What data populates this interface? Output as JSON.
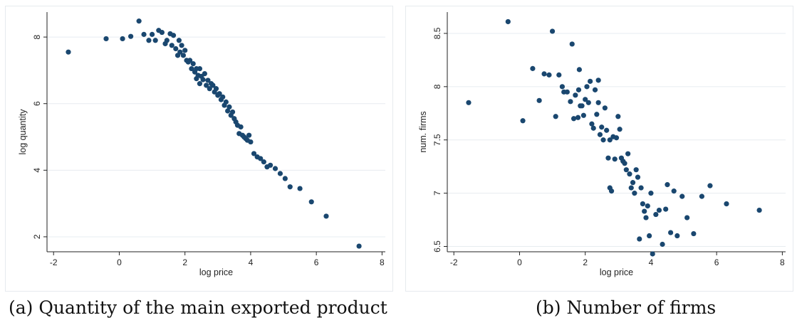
{
  "captions": {
    "a": "(a) Quantity of the main exported product",
    "b": "(b) Number of firms"
  },
  "colors": {
    "marker": "#1a476f",
    "grid": "#e7ecf0",
    "axis": "#222222"
  },
  "chart_data": [
    {
      "type": "scatter",
      "title": "",
      "xlabel": "log price",
      "ylabel": "log quantity",
      "xlim": [
        -2.2,
        8.1
      ],
      "ylim": [
        1.55,
        8.75
      ],
      "xticks": [
        -2,
        0,
        2,
        4,
        6,
        8
      ],
      "yticks": [
        2,
        4,
        6,
        8
      ],
      "grid": "horizontal",
      "points": [
        [
          -1.55,
          7.55
        ],
        [
          -0.4,
          7.95
        ],
        [
          0.1,
          7.95
        ],
        [
          0.35,
          8.02
        ],
        [
          0.6,
          8.48
        ],
        [
          0.75,
          8.08
        ],
        [
          0.9,
          7.9
        ],
        [
          1.0,
          8.08
        ],
        [
          1.1,
          7.9
        ],
        [
          1.2,
          8.2
        ],
        [
          1.3,
          8.14
        ],
        [
          1.4,
          7.8
        ],
        [
          1.45,
          7.9
        ],
        [
          1.55,
          8.1
        ],
        [
          1.6,
          7.75
        ],
        [
          1.65,
          8.05
        ],
        [
          1.72,
          7.65
        ],
        [
          1.78,
          7.45
        ],
        [
          1.82,
          7.9
        ],
        [
          1.85,
          7.55
        ],
        [
          1.9,
          7.75
        ],
        [
          1.95,
          7.45
        ],
        [
          2.0,
          7.6
        ],
        [
          2.05,
          7.3
        ],
        [
          2.1,
          7.25
        ],
        [
          2.15,
          7.3
        ],
        [
          2.2,
          7.05
        ],
        [
          2.25,
          7.2
        ],
        [
          2.3,
          6.95
        ],
        [
          2.35,
          7.05
        ],
        [
          2.35,
          6.75
        ],
        [
          2.4,
          6.85
        ],
        [
          2.45,
          6.6
        ],
        [
          2.45,
          7.05
        ],
        [
          2.5,
          6.82
        ],
        [
          2.55,
          6.72
        ],
        [
          2.6,
          6.9
        ],
        [
          2.65,
          6.55
        ],
        [
          2.7,
          6.7
        ],
        [
          2.75,
          6.45
        ],
        [
          2.8,
          6.6
        ],
        [
          2.85,
          6.55
        ],
        [
          2.9,
          6.35
        ],
        [
          2.95,
          6.45
        ],
        [
          3.0,
          6.25
        ],
        [
          3.05,
          6.3
        ],
        [
          3.1,
          6.12
        ],
        [
          3.15,
          6.2
        ],
        [
          3.2,
          5.95
        ],
        [
          3.25,
          6.05
        ],
        [
          3.3,
          5.78
        ],
        [
          3.35,
          5.9
        ],
        [
          3.4,
          5.65
        ],
        [
          3.45,
          5.75
        ],
        [
          3.5,
          5.55
        ],
        [
          3.55,
          5.45
        ],
        [
          3.6,
          5.35
        ],
        [
          3.65,
          5.1
        ],
        [
          3.7,
          5.3
        ],
        [
          3.75,
          5.05
        ],
        [
          3.8,
          5.0
        ],
        [
          3.85,
          4.95
        ],
        [
          3.9,
          4.9
        ],
        [
          3.95,
          5.05
        ],
        [
          4.0,
          4.85
        ],
        [
          4.1,
          4.5
        ],
        [
          4.2,
          4.4
        ],
        [
          4.3,
          4.35
        ],
        [
          4.4,
          4.25
        ],
        [
          4.5,
          4.1
        ],
        [
          4.6,
          4.15
        ],
        [
          4.75,
          4.05
        ],
        [
          4.9,
          3.9
        ],
        [
          5.05,
          3.75
        ],
        [
          5.2,
          3.5
        ],
        [
          5.5,
          3.45
        ],
        [
          5.85,
          3.05
        ],
        [
          6.3,
          2.62
        ],
        [
          7.3,
          1.72
        ]
      ]
    },
    {
      "type": "scatter",
      "title": "",
      "xlabel": "log price",
      "ylabel": "num. firms",
      "xlim": [
        -2.2,
        8.1
      ],
      "ylim": [
        6.45,
        8.7
      ],
      "xticks": [
        -2,
        0,
        2,
        4,
        6,
        8
      ],
      "yticks": [
        6.5,
        7,
        7.5,
        8,
        8.5
      ],
      "grid": "horizontal",
      "points": [
        [
          -1.55,
          7.85
        ],
        [
          -0.35,
          8.61
        ],
        [
          0.1,
          7.68
        ],
        [
          0.4,
          8.17
        ],
        [
          0.6,
          7.87
        ],
        [
          0.75,
          8.12
        ],
        [
          0.9,
          8.11
        ],
        [
          1.0,
          8.52
        ],
        [
          1.1,
          7.72
        ],
        [
          1.2,
          8.11
        ],
        [
          1.3,
          8.0
        ],
        [
          1.35,
          7.95
        ],
        [
          1.45,
          7.95
        ],
        [
          1.55,
          7.86
        ],
        [
          1.6,
          8.4
        ],
        [
          1.65,
          7.7
        ],
        [
          1.7,
          7.92
        ],
        [
          1.78,
          7.71
        ],
        [
          1.82,
          8.16
        ],
        [
          1.85,
          7.82
        ],
        [
          1.9,
          7.82
        ],
        [
          1.95,
          7.73
        ],
        [
          2.0,
          7.88
        ],
        [
          2.05,
          8.0
        ],
        [
          2.1,
          7.85
        ],
        [
          2.15,
          8.05
        ],
        [
          2.2,
          7.65
        ],
        [
          2.25,
          7.61
        ],
        [
          2.3,
          7.97
        ],
        [
          2.35,
          7.74
        ],
        [
          2.4,
          8.06
        ],
        [
          2.45,
          7.55
        ],
        [
          2.5,
          7.62
        ],
        [
          2.55,
          7.5
        ],
        [
          2.6,
          7.8
        ],
        [
          2.65,
          7.59
        ],
        [
          2.7,
          7.33
        ],
        [
          2.75,
          7.5
        ],
        [
          2.8,
          7.02
        ],
        [
          2.85,
          7.53
        ],
        [
          2.9,
          7.32
        ],
        [
          2.95,
          7.52
        ],
        [
          3.0,
          7.72
        ],
        [
          3.05,
          7.6
        ],
        [
          3.1,
          7.33
        ],
        [
          3.15,
          7.3
        ],
        [
          3.2,
          7.28
        ],
        [
          3.25,
          7.22
        ],
        [
          3.3,
          7.37
        ],
        [
          3.35,
          7.18
        ],
        [
          3.4,
          7.05
        ],
        [
          3.45,
          7.1
        ],
        [
          3.5,
          7.0
        ],
        [
          3.55,
          7.22
        ],
        [
          3.6,
          7.15
        ],
        [
          3.65,
          6.57
        ],
        [
          3.7,
          7.05
        ],
        [
          3.75,
          6.9
        ],
        [
          3.8,
          6.83
        ],
        [
          3.85,
          6.77
        ],
        [
          3.9,
          6.88
        ],
        [
          3.95,
          6.6
        ],
        [
          4.0,
          7.0
        ],
        [
          4.05,
          6.43
        ],
        [
          4.15,
          6.8
        ],
        [
          4.25,
          6.84
        ],
        [
          4.35,
          6.52
        ],
        [
          4.45,
          6.85
        ],
        [
          4.5,
          7.08
        ],
        [
          4.6,
          6.63
        ],
        [
          4.7,
          7.02
        ],
        [
          4.8,
          6.6
        ],
        [
          4.95,
          6.97
        ],
        [
          5.1,
          6.77
        ],
        [
          5.3,
          6.62
        ],
        [
          5.55,
          6.97
        ],
        [
          5.8,
          7.07
        ],
        [
          6.3,
          6.9
        ],
        [
          7.3,
          6.84
        ],
        [
          2.75,
          7.05
        ],
        [
          2.4,
          7.85
        ],
        [
          1.8,
          7.97
        ]
      ]
    }
  ]
}
